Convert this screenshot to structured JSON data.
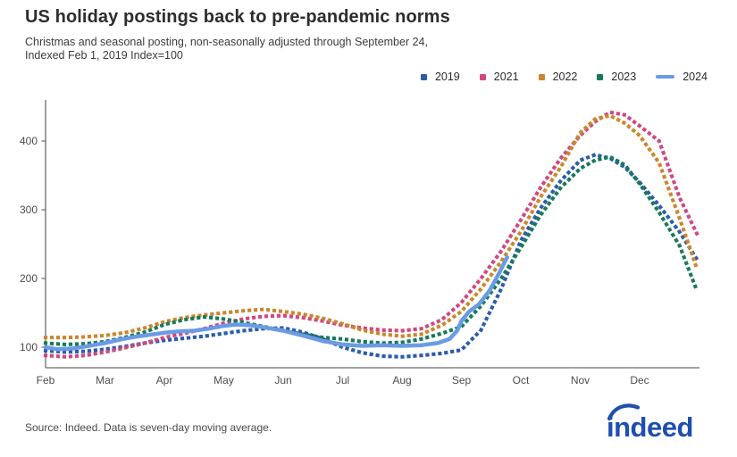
{
  "header": {
    "title": "US holiday postings back to pre-pandemic norms",
    "subtitle_line1": "Christmas and seasonal posting, non-seasonally adjusted through September 24,",
    "subtitle_line2": "Indexed Feb 1, 2019 Index=100"
  },
  "footer": {
    "source": "Source: Indeed. Data is seven-day moving average.",
    "logo_text": "indeed",
    "logo_color": "#1f4eb0"
  },
  "chart_data": {
    "type": "line",
    "title": "US holiday postings back to pre-pandemic norms",
    "x_unit": "months since Feb 1 (0 = Feb 1, 10 = Dec 1)",
    "x_tick_labels": [
      "Feb",
      "Mar",
      "Apr",
      "May",
      "Jun",
      "Jul",
      "Aug",
      "Sep",
      "Oct",
      "Nov",
      "Dec"
    ],
    "y_ticks": [
      100,
      200,
      300,
      400
    ],
    "ylim": [
      70,
      460
    ],
    "xlim": [
      0,
      11
    ],
    "grid": false,
    "legend_position": "top-right",
    "axis_color": "#6b6b6b",
    "tick_label_color": "#4d4d4d",
    "x": [
      0,
      0.33,
      0.67,
      1,
      1.33,
      1.67,
      2,
      2.33,
      2.67,
      3,
      3.33,
      3.67,
      4,
      4.33,
      4.67,
      5,
      5.33,
      5.67,
      6,
      6.33,
      6.67,
      7,
      7.33,
      7.67,
      8,
      8.33,
      8.67,
      9,
      9.25,
      9.5,
      9.75,
      10,
      10.33,
      10.67,
      10.97
    ],
    "series": [
      {
        "name": "2019",
        "color": "#2c5cac",
        "style": "dotted",
        "values": [
          95,
          93,
          94,
          97,
          101,
          106,
          110,
          113,
          116,
          120,
          124,
          127,
          128,
          122,
          112,
          100,
          92,
          87,
          86,
          88,
          91,
          96,
          125,
          185,
          255,
          302,
          342,
          372,
          380,
          375,
          362,
          340,
          306,
          268,
          227
        ]
      },
      {
        "name": "2021",
        "color": "#cf4981",
        "style": "dotted",
        "values": [
          88,
          86,
          88,
          93,
          99,
          106,
          114,
          120,
          127,
          135,
          141,
          145,
          146,
          143,
          138,
          132,
          128,
          125,
          124,
          127,
          140,
          165,
          200,
          240,
          285,
          332,
          375,
          408,
          428,
          442,
          438,
          422,
          400,
          318,
          264
        ]
      },
      {
        "name": "2022",
        "color": "#c9882e",
        "style": "dotted",
        "values": [
          114,
          114,
          115,
          117,
          121,
          128,
          137,
          143,
          147,
          150,
          153,
          155,
          152,
          148,
          142,
          134,
          125,
          119,
          116,
          119,
          132,
          152,
          185,
          225,
          268,
          318,
          362,
          412,
          432,
          437,
          426,
          408,
          368,
          288,
          213
        ]
      },
      {
        "name": "2023",
        "color": "#18795b",
        "style": "dotted",
        "values": [
          106,
          104,
          105,
          108,
          114,
          122,
          133,
          140,
          144,
          141,
          136,
          130,
          124,
          119,
          114,
          112,
          108,
          106,
          107,
          112,
          120,
          130,
          160,
          200,
          245,
          292,
          332,
          360,
          372,
          377,
          365,
          338,
          296,
          248,
          181
        ]
      },
      {
        "name": "2024",
        "color": "#6b9be4",
        "style": "solid",
        "x": [
          0,
          0.2,
          0.45,
          0.67,
          1,
          1.25,
          1.5,
          1.75,
          2,
          2.25,
          2.5,
          2.75,
          3,
          3.2,
          3.45,
          3.67,
          4,
          4.33,
          4.67,
          5,
          5.33,
          5.67,
          6,
          6.33,
          6.6,
          6.8,
          6.93,
          7,
          7.13,
          7.3,
          7.47,
          7.63,
          7.77
        ],
        "values": [
          100,
          97,
          98,
          101,
          106,
          111,
          115,
          118,
          121,
          123,
          124,
          127,
          131,
          133,
          132,
          129,
          124,
          117,
          109,
          104,
          102,
          103,
          102,
          103,
          106,
          112,
          124,
          138,
          152,
          163,
          182,
          207,
          231
        ]
      }
    ]
  }
}
